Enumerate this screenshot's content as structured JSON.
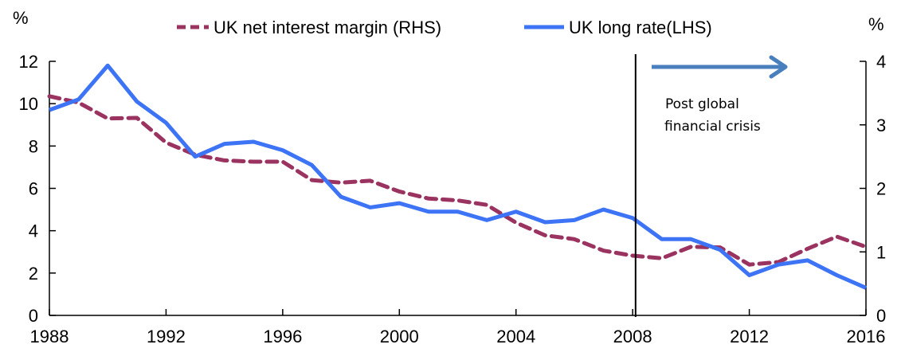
{
  "chart_data": {
    "type": "line",
    "title": "",
    "xlabel": "",
    "ylabel_left": "%",
    "ylabel_right": "%",
    "x": [
      1988,
      1989,
      1990,
      1991,
      1992,
      1993,
      1994,
      1995,
      1996,
      1997,
      1998,
      1999,
      2000,
      2001,
      2002,
      2003,
      2004,
      2005,
      2006,
      2007,
      2008,
      2009,
      2010,
      2011,
      2012,
      2013,
      2014,
      2015,
      2016
    ],
    "xlim": [
      1988,
      2016
    ],
    "x_ticks": [
      "1988",
      "1992",
      "1996",
      "2000",
      "2004",
      "2008",
      "2012",
      "2016"
    ],
    "ylim_left": [
      0,
      12
    ],
    "y_ticks_left": [
      "0",
      "2",
      "4",
      "6",
      "8",
      "10",
      "12"
    ],
    "ylim_right": [
      0,
      4
    ],
    "y_ticks_right": [
      "0",
      "1",
      "2",
      "3",
      "4"
    ],
    "grid": false,
    "legend_position": "top",
    "series": [
      {
        "name": "UK net interest margin (RHS)",
        "axis": "right",
        "style": "dashed",
        "color": "#9b3361",
        "values": [
          3.45,
          3.35,
          3.1,
          3.11,
          2.72,
          2.53,
          2.44,
          2.42,
          2.42,
          2.13,
          2.09,
          2.12,
          1.95,
          1.84,
          1.81,
          1.74,
          1.46,
          1.26,
          1.2,
          1.02,
          0.94,
          0.9,
          1.08,
          1.07,
          0.8,
          0.84,
          1.05,
          1.24,
          1.08
        ]
      },
      {
        "name": "UK long rate(LHS)",
        "axis": "left",
        "style": "solid",
        "color": "#3d73f5",
        "values": [
          9.7,
          10.2,
          11.8,
          10.1,
          9.1,
          7.5,
          8.1,
          8.2,
          7.8,
          7.1,
          5.6,
          5.1,
          5.3,
          4.9,
          4.9,
          4.5,
          4.9,
          4.4,
          4.5,
          5.0,
          4.6,
          3.6,
          3.6,
          3.1,
          1.9,
          2.4,
          2.6,
          1.9,
          1.3
        ]
      }
    ],
    "annotations": {
      "vline_x": 2008.1,
      "text_line1": "Post global",
      "text_line2": "financial crisis",
      "arrow_color": "#4a7fbd"
    }
  }
}
